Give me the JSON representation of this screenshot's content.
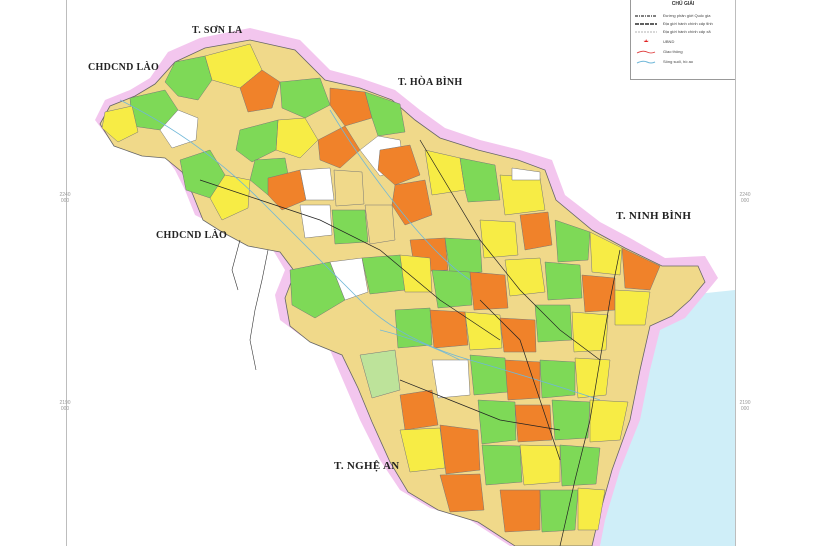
{
  "legend": {
    "title": "CHÚ GIẢI",
    "items": [
      {
        "label": "Đường phân giới Quốc gia",
        "symbol": "national-boundary"
      },
      {
        "label": "Địa giới hành chính cấp tỉnh",
        "symbol": "provincial-boundary"
      },
      {
        "label": "Địa giới hành chính cấp xã",
        "symbol": "commune-boundary"
      },
      {
        "label": "UBND",
        "symbol": "ubnd-star"
      },
      {
        "label": "Giao thông",
        "symbol": "road"
      },
      {
        "label": "Sông suối, hồ ao",
        "symbol": "water"
      }
    ]
  },
  "labels": {
    "son_la": "T. SƠN LA",
    "hoa_binh": "T. HÒA BÌNH",
    "lao_north": "CHDCND LÀO",
    "lao_mid": "CHDCND LÀO",
    "ninh_binh": "T. NINH BÌNH",
    "nghe_an": "T. NGHỆ AN"
  },
  "grid_labels": {
    "left_upper": "2240\n000",
    "left_lower": "2190\n000",
    "right_upper": "2240\n000",
    "right_lower": "2190\n000"
  },
  "colors": {
    "buffer": "#f3c6ee",
    "sea": "#cfeef8",
    "green": "#7ed957",
    "yellow": "#f7ec45",
    "orange": "#f0822a",
    "tan": "#f0d98a",
    "white": "#ffffff",
    "lightgreen": "#bde39a",
    "road": "#222222",
    "boundary": "#555555"
  }
}
